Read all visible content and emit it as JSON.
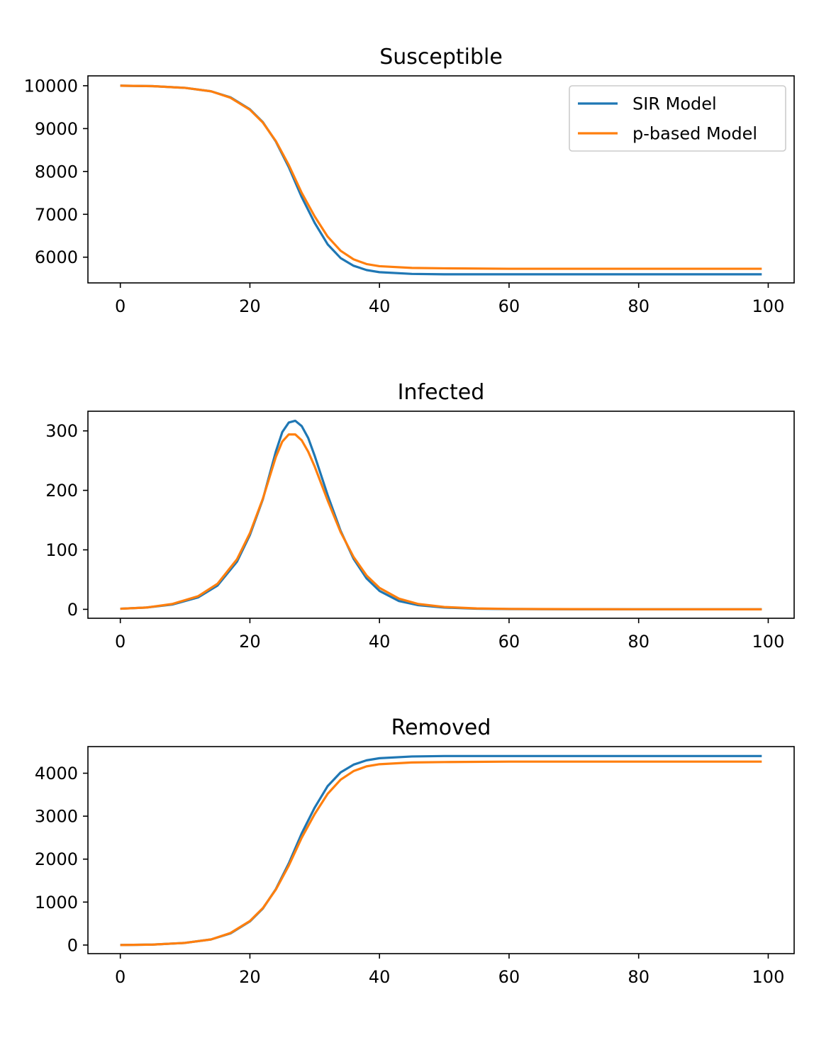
{
  "chart_data": [
    {
      "type": "line",
      "title": "Susceptible",
      "xlim": [
        -5,
        104
      ],
      "ylim": [
        5400,
        10230
      ],
      "xticks": [
        0,
        20,
        40,
        60,
        80,
        100
      ],
      "yticks": [
        6000,
        7000,
        8000,
        9000,
        10000
      ],
      "legend": "top-right",
      "series": [
        {
          "name": "SIR Model",
          "color": "#1f77b4",
          "x": [
            0,
            5,
            10,
            14,
            17,
            20,
            22,
            24,
            26,
            28,
            30,
            32,
            34,
            36,
            38,
            40,
            45,
            50,
            60,
            80,
            99
          ],
          "y": [
            10000,
            9990,
            9950,
            9870,
            9730,
            9450,
            9150,
            8700,
            8100,
            7400,
            6800,
            6300,
            5980,
            5800,
            5700,
            5650,
            5610,
            5600,
            5600,
            5600,
            5600
          ]
        },
        {
          "name": "p-based Model",
          "color": "#ff7f0e",
          "x": [
            0,
            5,
            10,
            14,
            17,
            20,
            22,
            24,
            26,
            28,
            30,
            32,
            34,
            36,
            38,
            40,
            45,
            50,
            60,
            80,
            99
          ],
          "y": [
            10000,
            9990,
            9950,
            9870,
            9720,
            9440,
            9140,
            8710,
            8150,
            7500,
            6950,
            6480,
            6150,
            5950,
            5840,
            5790,
            5750,
            5740,
            5730,
            5730,
            5730
          ]
        }
      ]
    },
    {
      "type": "line",
      "title": "Infected",
      "xlim": [
        -5,
        104
      ],
      "ylim": [
        -15,
        333
      ],
      "xticks": [
        0,
        20,
        40,
        60,
        80,
        100
      ],
      "yticks": [
        0,
        100,
        200,
        300
      ],
      "series": [
        {
          "name": "SIR Model",
          "color": "#1f77b4",
          "x": [
            0,
            4,
            8,
            12,
            15,
            18,
            20,
            22,
            24,
            25,
            26,
            27,
            28,
            29,
            30,
            32,
            34,
            36,
            38,
            40,
            43,
            46,
            50,
            55,
            60,
            70,
            80,
            99
          ],
          "y": [
            1,
            3,
            8,
            20,
            40,
            80,
            125,
            185,
            265,
            298,
            314,
            317,
            308,
            288,
            258,
            192,
            132,
            85,
            52,
            31,
            14,
            7,
            3,
            1,
            0.5,
            0.2,
            0.1,
            0
          ]
        },
        {
          "name": "p-based Model",
          "color": "#ff7f0e",
          "x": [
            0,
            4,
            8,
            12,
            15,
            18,
            20,
            22,
            24,
            25,
            26,
            27,
            28,
            29,
            30,
            32,
            34,
            36,
            38,
            40,
            43,
            46,
            50,
            55,
            60,
            70,
            80,
            99
          ],
          "y": [
            1,
            3,
            9,
            22,
            43,
            84,
            128,
            186,
            256,
            282,
            294,
            294,
            284,
            265,
            240,
            183,
            130,
            88,
            57,
            36,
            18,
            9,
            4,
            1.5,
            0.7,
            0.3,
            0.1,
            0
          ]
        }
      ]
    },
    {
      "type": "line",
      "title": "Removed",
      "xlim": [
        -5,
        104
      ],
      "ylim": [
        -200,
        4620
      ],
      "xticks": [
        0,
        20,
        40,
        60,
        80,
        100
      ],
      "yticks": [
        0,
        1000,
        2000,
        3000,
        4000
      ],
      "series": [
        {
          "name": "SIR Model",
          "color": "#1f77b4",
          "x": [
            0,
            5,
            10,
            14,
            17,
            20,
            22,
            24,
            26,
            28,
            30,
            32,
            34,
            36,
            38,
            40,
            45,
            50,
            60,
            80,
            99
          ],
          "y": [
            0,
            10,
            50,
            130,
            270,
            550,
            850,
            1300,
            1900,
            2600,
            3200,
            3700,
            4020,
            4200,
            4300,
            4350,
            4390,
            4400,
            4400,
            4400,
            4400
          ]
        },
        {
          "name": "p-based Model",
          "color": "#ff7f0e",
          "x": [
            0,
            5,
            10,
            14,
            17,
            20,
            22,
            24,
            26,
            28,
            30,
            32,
            34,
            36,
            38,
            40,
            45,
            50,
            60,
            80,
            99
          ],
          "y": [
            0,
            10,
            50,
            130,
            280,
            560,
            860,
            1290,
            1850,
            2500,
            3050,
            3520,
            3850,
            4050,
            4160,
            4210,
            4250,
            4260,
            4270,
            4270,
            4270
          ]
        }
      ]
    }
  ]
}
